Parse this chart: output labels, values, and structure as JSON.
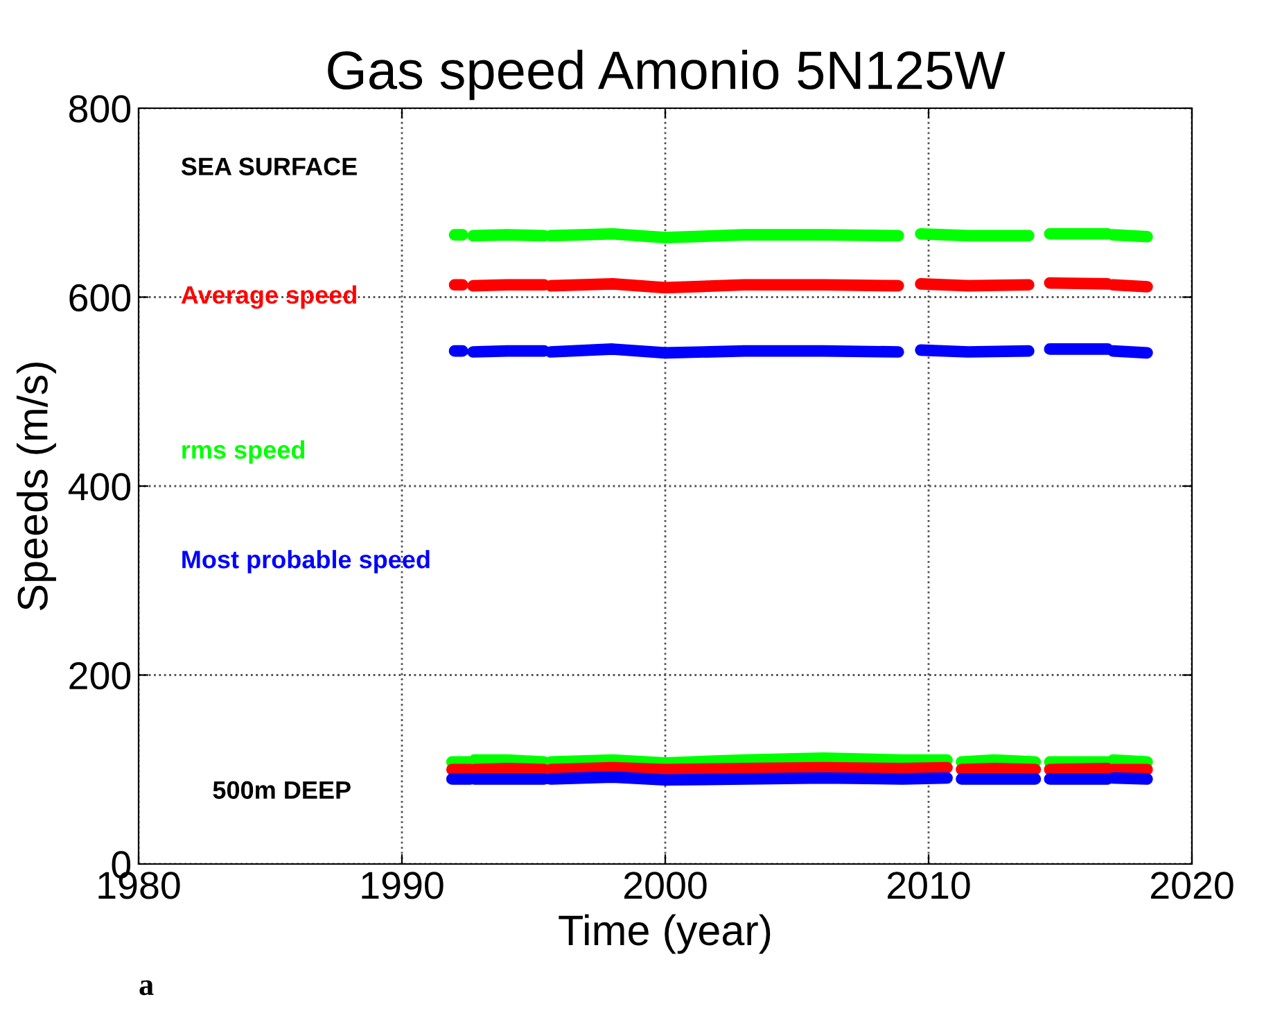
{
  "chart_data": {
    "type": "line",
    "title": "Gas speed Amonio 5N125W",
    "xlabel": "Time (year)",
    "ylabel": "Speeds (m/s)",
    "xlim": [
      1980,
      2020
    ],
    "xticks": [
      1980,
      1990,
      2000,
      2010,
      2020
    ],
    "ylim": [
      0,
      800
    ],
    "yticks": [
      0,
      200,
      400,
      600,
      800
    ],
    "grid": true,
    "line_style": "solid",
    "annotations": [
      "SEA SURFACE",
      "500m DEEP",
      "a"
    ],
    "series": [
      {
        "name": "Average speed",
        "color": "#ff0000",
        "x": [
          1992.0,
          1992.3,
          1992.5,
          1992.7,
          1994.0,
          1995.4,
          1995.5,
          1995.65,
          1998,
          2000,
          2003,
          2006,
          2008.85,
          2009.3,
          2009.7,
          2011.5,
          2013.8,
          2014.2,
          2014.6,
          2016.8,
          2016.9,
          2017.0,
          2018.3
        ],
        "values": [
          613,
          613,
          null,
          612,
          613,
          613,
          null,
          612,
          614,
          610,
          613,
          613,
          612,
          null,
          614,
          612,
          613,
          null,
          615,
          614,
          null,
          613,
          611
        ]
      },
      {
        "name": "rms speed",
        "color": "#00ff00",
        "x": [
          1992.0,
          1992.3,
          1992.5,
          1992.7,
          1994.0,
          1995.4,
          1995.5,
          1995.65,
          1998,
          2000,
          2003,
          2006,
          2008.85,
          2009.3,
          2009.7,
          2011.5,
          2013.8,
          2014.2,
          2014.6,
          2016.8,
          2016.9,
          2017.0,
          2018.3
        ],
        "values": [
          666,
          666,
          null,
          665,
          666,
          665,
          null,
          665,
          667,
          663,
          666,
          666,
          665,
          null,
          667,
          665,
          665,
          null,
          667,
          667,
          null,
          666,
          664
        ]
      },
      {
        "name": "Most probable speed",
        "color": "#0000ff",
        "x": [
          1992.0,
          1992.3,
          1992.5,
          1992.7,
          1994.0,
          1995.4,
          1995.5,
          1995.65,
          1998,
          2000,
          2003,
          2006,
          2008.85,
          2009.3,
          2009.7,
          2011.5,
          2013.8,
          2014.2,
          2014.6,
          2016.8,
          2016.9,
          2017.0,
          2018.3
        ],
        "values": [
          543,
          543,
          null,
          542,
          543,
          543,
          null,
          542,
          545,
          541,
          543,
          543,
          542,
          null,
          544,
          542,
          543,
          null,
          545,
          545,
          null,
          543,
          541
        ]
      },
      {
        "color": "#00ff00",
        "x": [
          1991.9,
          1992.6,
          1992.68,
          1992.75,
          1994,
          1995.4,
          1995.5,
          1995.65,
          1998,
          2000,
          2003,
          2006,
          2009,
          2010.7,
          2011,
          2011.25,
          2012.5,
          2014.05,
          2014.3,
          2014.6,
          2016.8,
          2016.9,
          2017.0,
          2018.3
        ],
        "values": [
          108,
          108,
          null,
          110,
          110,
          108,
          null,
          108,
          110,
          107,
          110,
          112,
          110,
          110,
          null,
          108,
          110,
          108,
          null,
          108,
          108,
          null,
          110,
          108
        ]
      },
      {
        "color": "#ff0000",
        "x": [
          1991.9,
          1992.6,
          1992.68,
          1992.75,
          1994,
          1995.4,
          1995.5,
          1995.65,
          1998,
          2000,
          2003,
          2006,
          2009,
          2010.7,
          2011,
          2011.25,
          2012.5,
          2014.05,
          2014.3,
          2014.6,
          2016.8,
          2016.9,
          2017.0,
          2018.3
        ],
        "values": [
          100,
          100,
          null,
          100,
          101,
          100,
          null,
          100,
          102,
          100,
          101,
          102,
          101,
          102,
          null,
          100,
          101,
          100,
          null,
          100,
          101,
          null,
          100,
          100
        ]
      },
      {
        "color": "#0000ff",
        "x": [
          1991.9,
          1992.6,
          1992.68,
          1992.75,
          1994,
          1995.4,
          1995.5,
          1995.65,
          1998,
          2000,
          2003,
          2006,
          2009,
          2010.7,
          2011,
          2011.25,
          2012.5,
          2014.05,
          2014.3,
          2014.6,
          2016.8,
          2016.9,
          2017.0,
          2018.3
        ],
        "values": [
          90,
          90,
          null,
          90,
          90,
          90,
          null,
          90,
          92,
          89,
          90,
          91,
          90,
          91,
          null,
          90,
          90,
          90,
          null,
          90,
          90,
          null,
          91,
          90
        ]
      }
    ]
  }
}
